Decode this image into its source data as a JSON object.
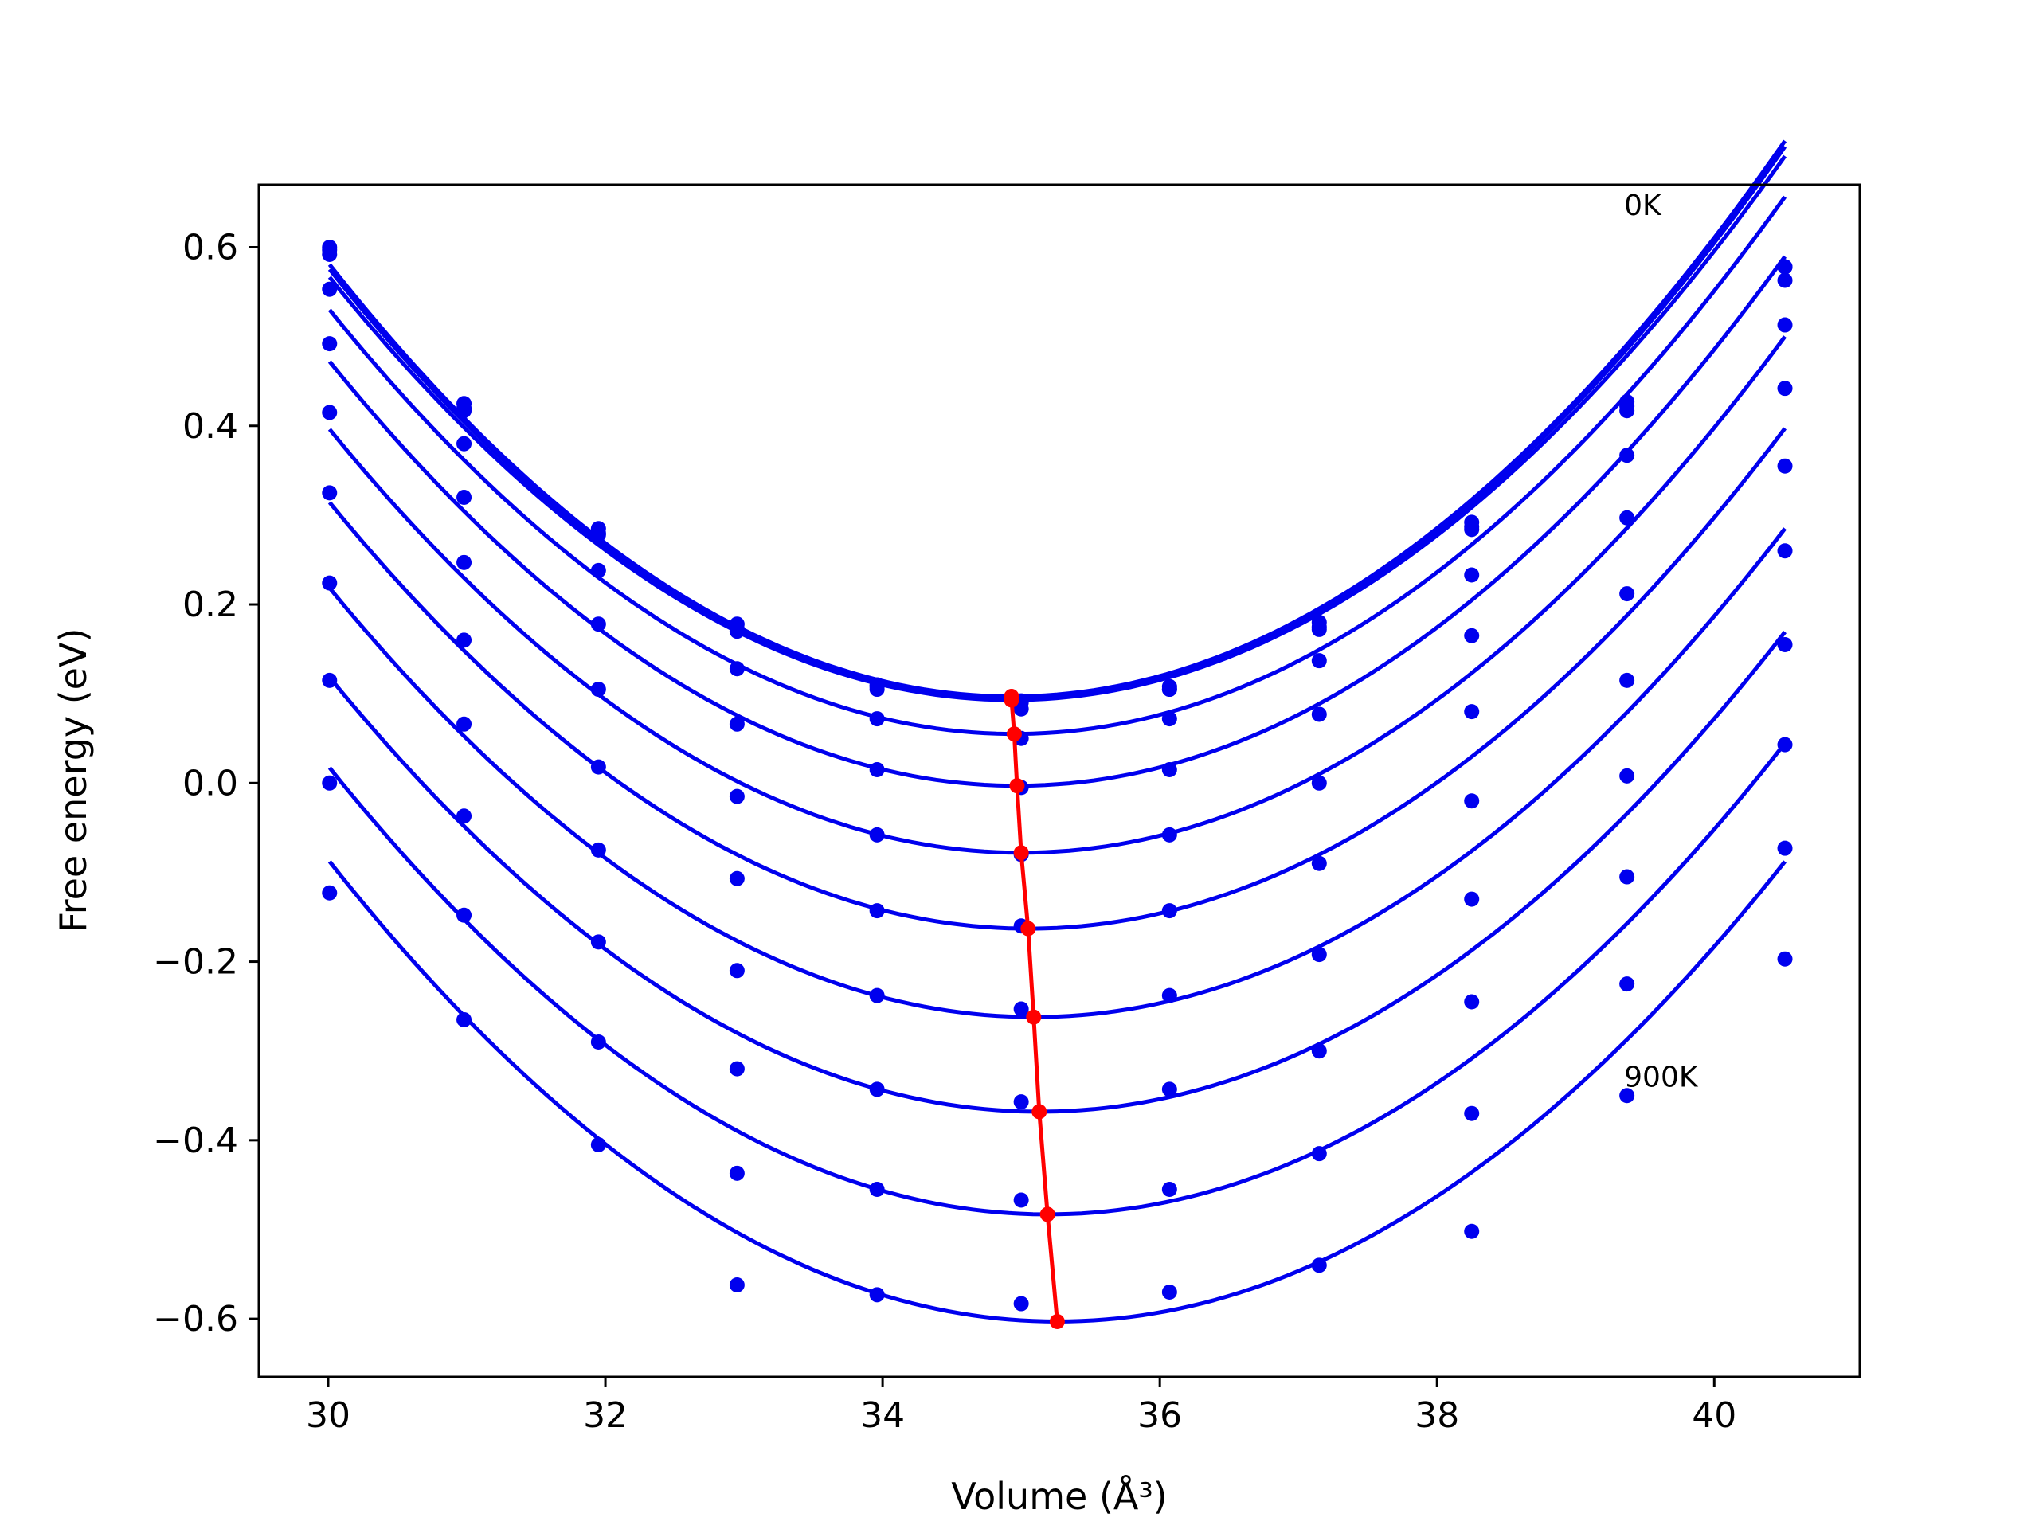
{
  "chart_data": {
    "type": "line",
    "xlabel": "Volume (Å³)",
    "ylabel": "Free energy (eV)",
    "xlim": [
      29.5,
      41.05
    ],
    "ylim": [
      -0.665,
      0.67
    ],
    "xticks": [
      30,
      32,
      34,
      36,
      38,
      40
    ],
    "yticks": [
      -0.6,
      -0.4,
      -0.2,
      0.0,
      0.2,
      0.4,
      0.6
    ],
    "ytick_labels": [
      "−0.6",
      "−0.4",
      "−0.2",
      "0.0",
      "0.2",
      "0.4",
      "0.6"
    ],
    "grid": false,
    "legend": "none",
    "colors": {
      "curves": "#0000ee",
      "minima": "#ff0000"
    },
    "annotations": [
      {
        "text": "0K",
        "x": 39.35,
        "y": 0.636
      },
      {
        "text": "900K",
        "x": 39.35,
        "y": -0.34
      }
    ],
    "volumes": [
      30.01,
      30.98,
      31.95,
      32.95,
      33.96,
      35.0,
      36.07,
      37.15,
      38.25,
      39.37,
      40.51
    ],
    "series": [
      {
        "points": [
          0.6,
          0.425,
          0.285,
          0.178,
          0.11,
          0.083,
          0.105,
          0.18,
          0.292,
          0.427,
          0.578
        ],
        "curve": {
          "a": 0.01998,
          "v0": 34.93,
          "e0": 0.097
        }
      },
      {
        "points": [
          0.597,
          0.42,
          0.28,
          0.173,
          0.108,
          0.09,
          0.108,
          0.175,
          0.287,
          0.422,
          0.578
        ],
        "curve": {
          "a": 0.01984,
          "v0": 34.93,
          "e0": 0.095
        }
      },
      {
        "points": [
          0.592,
          0.417,
          0.278,
          0.17,
          0.105,
          0.092,
          0.105,
          0.172,
          0.284,
          0.417,
          0.563
        ],
        "curve": {
          "a": 0.01956,
          "v0": 34.93,
          "e0": 0.093
        }
      },
      {
        "points": [
          0.553,
          0.38,
          0.238,
          0.128,
          0.072,
          0.05,
          0.072,
          0.137,
          0.233,
          0.367,
          0.513
        ],
        "curve": {
          "a": 0.01946,
          "v0": 34.95,
          "e0": 0.055
        }
      },
      {
        "points": [
          0.492,
          0.32,
          0.178,
          0.066,
          0.015,
          -0.005,
          0.015,
          0.077,
          0.165,
          0.297,
          0.442
        ],
        "curve": {
          "a": 0.01931,
          "v0": 34.97,
          "e0": -0.003
        }
      },
      {
        "points": [
          0.415,
          0.247,
          0.105,
          -0.015,
          -0.058,
          -0.08,
          -0.058,
          0.0,
          0.08,
          0.212,
          0.355
        ],
        "curve": {
          "a": 0.01904,
          "v0": 35.0,
          "e0": -0.078
        }
      },
      {
        "points": [
          0.325,
          0.16,
          0.018,
          -0.107,
          -0.143,
          -0.16,
          -0.143,
          -0.09,
          -0.02,
          0.115,
          0.26
        ],
        "curve": {
          "a": 0.01879,
          "v0": 35.05,
          "e0": -0.163
        }
      },
      {
        "points": [
          0.224,
          0.066,
          -0.075,
          -0.21,
          -0.238,
          -0.253,
          -0.238,
          -0.192,
          -0.13,
          0.008,
          0.155
        ],
        "curve": {
          "a": 0.01862,
          "v0": 35.09,
          "e0": -0.262
        }
      },
      {
        "points": [
          0.115,
          -0.037,
          -0.178,
          -0.32,
          -0.343,
          -0.357,
          -0.343,
          -0.3,
          -0.245,
          -0.105,
          0.043
        ],
        "curve": {
          "a": 0.01856,
          "v0": 35.13,
          "e0": -0.368
        }
      },
      {
        "points": [
          0.0,
          -0.148,
          -0.29,
          -0.437,
          -0.455,
          -0.467,
          -0.455,
          -0.415,
          -0.37,
          -0.225,
          -0.073
        ],
        "curve": {
          "a": 0.01864,
          "v0": 35.19,
          "e0": -0.483
        }
      },
      {
        "points": [
          -0.123,
          -0.265,
          -0.405,
          -0.562,
          -0.573,
          -0.583,
          -0.57,
          -0.54,
          -0.502,
          -0.35,
          -0.197
        ],
        "curve": {
          "a": 0.01869,
          "v0": 35.26,
          "e0": -0.603
        }
      }
    ],
    "minima": {
      "x": [
        34.93,
        34.93,
        34.93,
        34.95,
        34.97,
        35.0,
        35.05,
        35.09,
        35.13,
        35.19,
        35.26
      ],
      "y": [
        0.097,
        0.095,
        0.093,
        0.055,
        -0.003,
        -0.078,
        -0.163,
        -0.262,
        -0.368,
        -0.483,
        -0.603
      ]
    }
  }
}
